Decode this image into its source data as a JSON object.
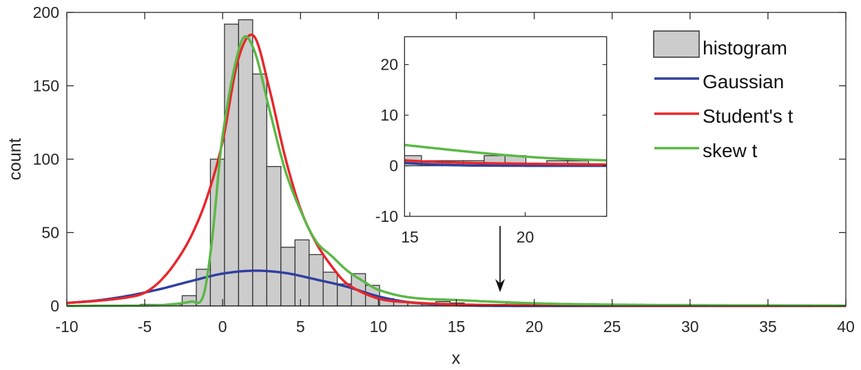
{
  "chart_data": [
    {
      "type": "bar+line",
      "xlabel": "x",
      "ylabel": "count",
      "xlim": [
        -10,
        40
      ],
      "ylim": [
        0,
        200
      ],
      "xticks": [
        "-10",
        "-5",
        "0",
        "5",
        "10",
        "15",
        "20",
        "25",
        "30",
        "35",
        "40"
      ],
      "xtick_values": [
        -10,
        -5,
        0,
        5,
        10,
        15,
        20,
        25,
        30,
        35,
        40
      ],
      "yticks": [
        "0",
        "50",
        "100",
        "150",
        "200"
      ],
      "ytick_values": [
        0,
        50,
        100,
        150,
        200
      ],
      "grid": false,
      "legend_position": "top-right",
      "histogram": {
        "name": "histogram",
        "color": "#cccccc",
        "bin_start": -5.31,
        "bin_width": 0.905,
        "counts": [
          1,
          1,
          1,
          7,
          25,
          100,
          192,
          195,
          158,
          95,
          40,
          45,
          35,
          23,
          15,
          22,
          14,
          5,
          3,
          2,
          1,
          3,
          2,
          1,
          1,
          1,
          2,
          2,
          0,
          1,
          1
        ]
      },
      "series": [
        {
          "name": "Gaussian",
          "color": "#2f3f9e",
          "x": [
            -10,
            -8,
            -6,
            -4,
            -2,
            0,
            2,
            4,
            6,
            8,
            10,
            12,
            15,
            20,
            40
          ],
          "y": [
            2,
            3.8,
            7,
            11.5,
            17,
            22,
            24,
            22.5,
            18,
            13,
            6.5,
            2.5,
            0.5,
            0,
            0
          ]
        },
        {
          "name": "Student's t",
          "color": "#e8262a",
          "x": [
            -10,
            -8,
            -6,
            -5,
            -4,
            -3,
            -2,
            -1,
            0,
            1,
            2,
            3,
            4,
            5,
            6,
            7,
            8,
            10,
            12,
            15,
            20,
            30,
            40
          ],
          "y": [
            2,
            3.5,
            6,
            9,
            17,
            30,
            48,
            74,
            112,
            168,
            184,
            148,
            102,
            66,
            43,
            27,
            15,
            5,
            2.5,
            1,
            0.4,
            0.1,
            0
          ]
        },
        {
          "name": "skew t",
          "color": "#5ab846",
          "x": [
            -10,
            -6,
            -4,
            -2,
            -1.25,
            -0.7,
            0,
            1.2,
            2,
            3,
            4,
            5,
            6,
            7,
            8,
            9,
            10,
            12,
            15,
            20,
            24,
            30,
            40
          ],
          "y": [
            0,
            0.2,
            0.5,
            3,
            6.5,
            43,
            116,
            180,
            175,
            134,
            93,
            65,
            44,
            34,
            24,
            17,
            11,
            5.8,
            4,
            1.8,
            1,
            0.5,
            0.2
          ]
        }
      ],
      "annotation": "arrow pointing down at x = 18"
    },
    {
      "type": "bar+line",
      "role": "inset",
      "xlim": [
        14.77,
        23.53
      ],
      "ylim": [
        -10,
        25.5
      ],
      "xticks": [
        "15",
        "20"
      ],
      "xtick_values": [
        15,
        20
      ],
      "yticks": [
        "-10",
        "0",
        "10",
        "20"
      ],
      "ytick_values": [
        -10,
        0,
        10,
        20
      ]
    }
  ]
}
